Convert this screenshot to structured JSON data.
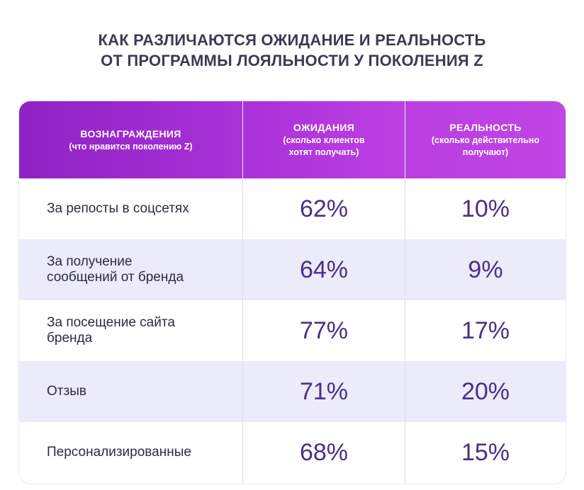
{
  "title": {
    "line1": "КАК РАЗЛИЧАЮТСЯ ОЖИДАНИЕ И РЕАЛЬНОСТЬ",
    "line2": "ОТ ПРОГРАММЫ ЛОЯЛЬНОСТИ У ПОКОЛЕНИЯ Z"
  },
  "header": {
    "col1_main": "ВОЗНАГРАЖДЕНИЯ",
    "col1_sub": "(что нравится поколению Z)",
    "col2_main": "ОЖИДАНИЯ",
    "col2_sub_1": "(сколько клиентов",
    "col2_sub_2": "хотят получать)",
    "col3_main": "РЕАЛЬНОСТЬ",
    "col3_sub_1": "(сколько действительно",
    "col3_sub_2": "получают)"
  },
  "rows": [
    {
      "label_1": "За репосты в соцсетях",
      "label_2": "",
      "expectation": "62%",
      "reality": "10%"
    },
    {
      "label_1": "За получение",
      "label_2": "сообщений от бренда",
      "expectation": "64%",
      "reality": "9%"
    },
    {
      "label_1": "За посещение сайта",
      "label_2": "бренда",
      "expectation": "77%",
      "reality": "17%"
    },
    {
      "label_1": "Отзыв",
      "label_2": "",
      "expectation": "71%",
      "reality": "20%"
    },
    {
      "label_1": "Персонализированные",
      "label_2": "",
      "expectation": "68%",
      "reality": "15%"
    }
  ],
  "colors": {
    "header_start": "#8f22c4",
    "header_end": "#c045e3",
    "alt_row": "#ecebfa",
    "value_text": "#4a2f86",
    "title_text": "#3b3b52"
  },
  "chart_data": {
    "type": "table",
    "title": "КАК РАЗЛИЧАЮТСЯ ОЖИДАНИЕ И РЕАЛЬНОСТЬ ОТ ПРОГРАММЫ ЛОЯЛЬНОСТИ У ПОКОЛЕНИЯ Z",
    "columns": [
      "ВОЗНАГРАЖДЕНИЯ (что нравится поколению Z)",
      "ОЖИДАНИЯ (сколько клиентов хотят получать)",
      "РЕАЛЬНОСТЬ (сколько действительно получают)"
    ],
    "categories": [
      "За репосты в соцсетях",
      "За получение сообщений от бренда",
      "За посещение сайта бренда",
      "Отзыв",
      "Персонализированные"
    ],
    "series": [
      {
        "name": "ОЖИДАНИЯ",
        "values": [
          62,
          64,
          77,
          71,
          68
        ]
      },
      {
        "name": "РЕАЛЬНОСТЬ",
        "values": [
          10,
          9,
          17,
          20,
          15
        ]
      }
    ],
    "unit": "%"
  }
}
